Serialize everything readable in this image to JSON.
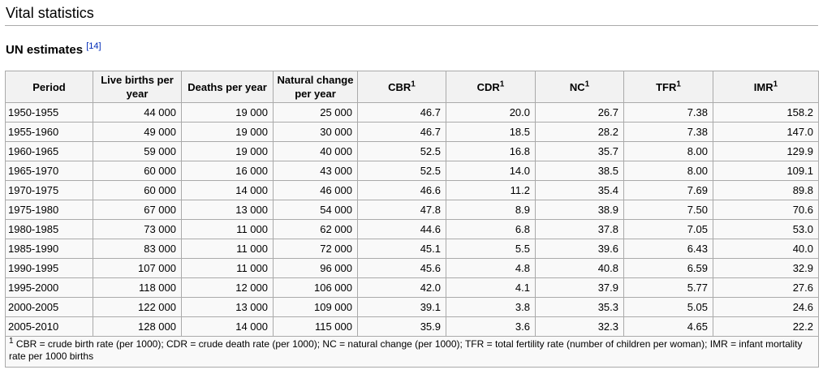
{
  "page": {
    "section_title": "Vital statistics",
    "subsection_title": "UN estimates",
    "reference_label": "[14]"
  },
  "table": {
    "columns": [
      {
        "label": "Period"
      },
      {
        "label": "Live births per year"
      },
      {
        "label": "Deaths per year"
      },
      {
        "label": "Natural change per year"
      },
      {
        "label": "CBR",
        "sup": "1"
      },
      {
        "label": "CDR",
        "sup": "1"
      },
      {
        "label": "NC",
        "sup": "1"
      },
      {
        "label": "TFR",
        "sup": "1"
      },
      {
        "label": "IMR",
        "sup": "1"
      }
    ],
    "rows": [
      [
        "1950-1955",
        "44 000",
        "19 000",
        "25 000",
        "46.7",
        "20.0",
        "26.7",
        "7.38",
        "158.2"
      ],
      [
        "1955-1960",
        "49 000",
        "19 000",
        "30 000",
        "46.7",
        "18.5",
        "28.2",
        "7.38",
        "147.0"
      ],
      [
        "1960-1965",
        "59 000",
        "19 000",
        "40 000",
        "52.5",
        "16.8",
        "35.7",
        "8.00",
        "129.9"
      ],
      [
        "1965-1970",
        "60 000",
        "16 000",
        "43 000",
        "52.5",
        "14.0",
        "38.5",
        "8.00",
        "109.1"
      ],
      [
        "1970-1975",
        "60 000",
        "14 000",
        "46 000",
        "46.6",
        "11.2",
        "35.4",
        "7.69",
        "89.8"
      ],
      [
        "1975-1980",
        "67 000",
        "13 000",
        "54 000",
        "47.8",
        "8.9",
        "38.9",
        "7.50",
        "70.6"
      ],
      [
        "1980-1985",
        "73 000",
        "11 000",
        "62 000",
        "44.6",
        "6.8",
        "37.8",
        "7.05",
        "53.0"
      ],
      [
        "1985-1990",
        "83 000",
        "11 000",
        "72 000",
        "45.1",
        "5.5",
        "39.6",
        "6.43",
        "40.0"
      ],
      [
        "1990-1995",
        "107 000",
        "11 000",
        "96 000",
        "45.6",
        "4.8",
        "40.8",
        "6.59",
        "32.9"
      ],
      [
        "1995-2000",
        "118 000",
        "12 000",
        "106 000",
        "42.0",
        "4.1",
        "37.9",
        "5.77",
        "27.6"
      ],
      [
        "2000-2005",
        "122 000",
        "13 000",
        "109 000",
        "39.1",
        "3.8",
        "35.3",
        "5.05",
        "24.6"
      ],
      [
        "2005-2010",
        "128 000",
        "14 000",
        "115 000",
        "35.9",
        "3.6",
        "32.3",
        "4.65",
        "22.2"
      ]
    ],
    "footnote": {
      "sup": "1",
      "text": "CBR = crude birth rate (per 1000); CDR = crude death rate (per 1000); NC = natural change (per 1000); TFR = total fertility rate (number of children per woman); IMR = infant mortality rate per 1000 births"
    }
  },
  "colors": {
    "link": "#002bb8",
    "table_border": "#aaaaaa",
    "header_bg": "#f2f2f2",
    "table_bg": "#f9f9f9",
    "heading_rule": "#aaaaaa"
  }
}
